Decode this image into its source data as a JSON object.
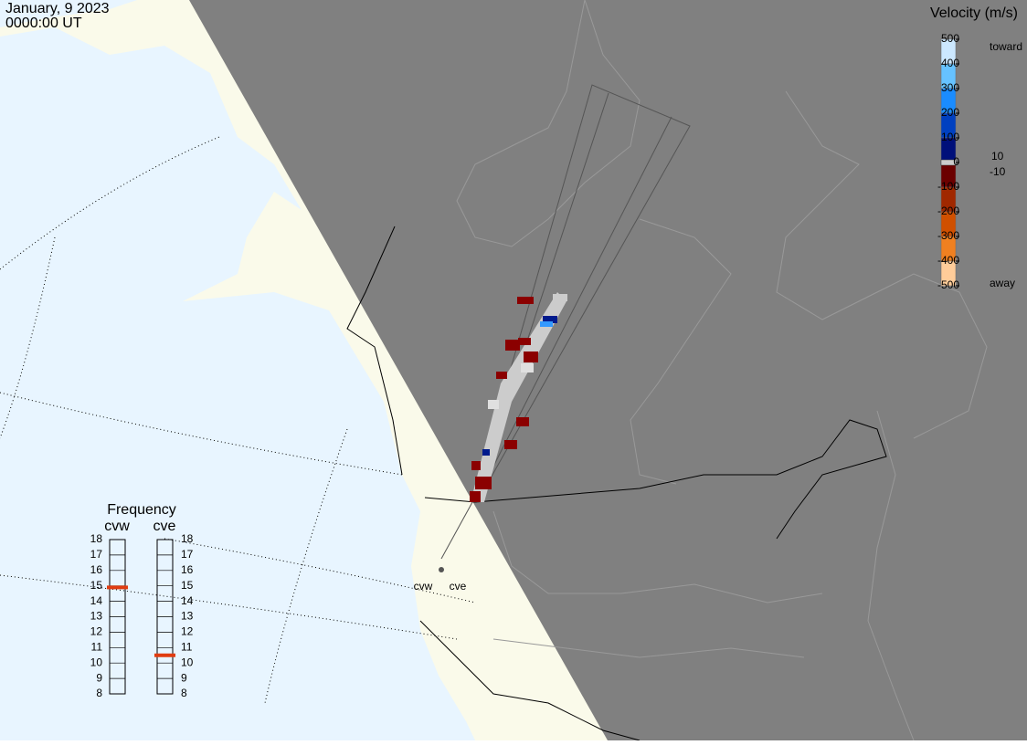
{
  "header": {
    "date": "January, 9 2023",
    "time": "0000:00 UT"
  },
  "colorbar": {
    "title": "Velocity (m/s)",
    "ticks": [
      500,
      400,
      300,
      200,
      100,
      0,
      -100,
      -200,
      -300,
      -400,
      -500
    ],
    "toward": "toward",
    "away": "away",
    "upper_threshold": "10",
    "lower_threshold": "-10"
  },
  "frequency": {
    "title": "Frequency",
    "scale": [
      18,
      17,
      16,
      15,
      14,
      13,
      12,
      11,
      10,
      9,
      8
    ],
    "radars": [
      {
        "name": "cvw",
        "value": 14.9
      },
      {
        "name": "cve",
        "value": 10.5
      }
    ]
  },
  "stations": [
    "cvw",
    "cve"
  ]
}
